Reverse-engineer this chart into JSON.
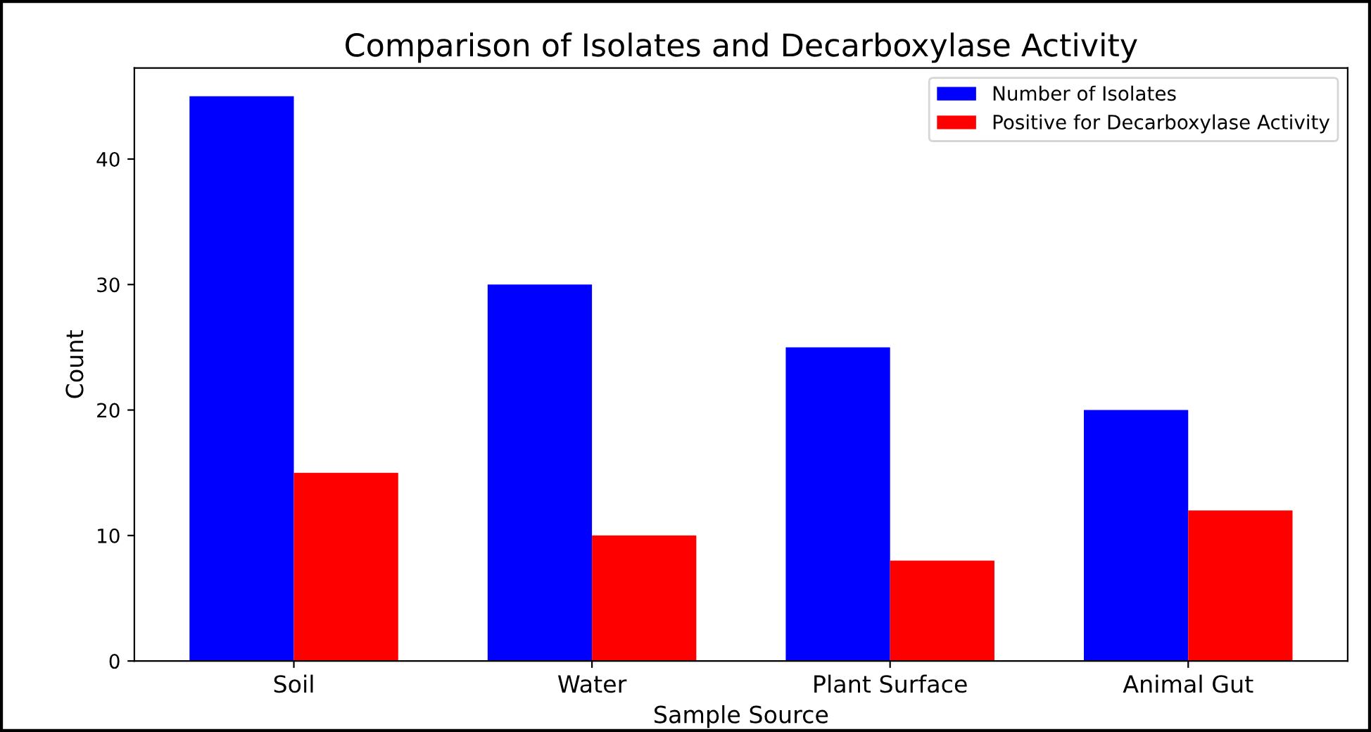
{
  "chart_data": {
    "type": "bar",
    "title": "Comparison of Isolates and Decarboxylase Activity",
    "xlabel": "Sample Source",
    "ylabel": "Count",
    "categories": [
      "Soil",
      "Water",
      "Plant Surface",
      "Animal Gut"
    ],
    "series": [
      {
        "name": "Number of Isolates",
        "color": "#0000ff",
        "values": [
          45,
          30,
          25,
          20
        ]
      },
      {
        "name": "Positive for Decarboxylase Activity",
        "color": "#ff0000",
        "values": [
          15,
          10,
          8,
          12
        ]
      }
    ],
    "ylim": [
      0,
      47.25
    ],
    "yticks": [
      0,
      10,
      20,
      30,
      40
    ],
    "grid": false,
    "legend": "top right"
  }
}
